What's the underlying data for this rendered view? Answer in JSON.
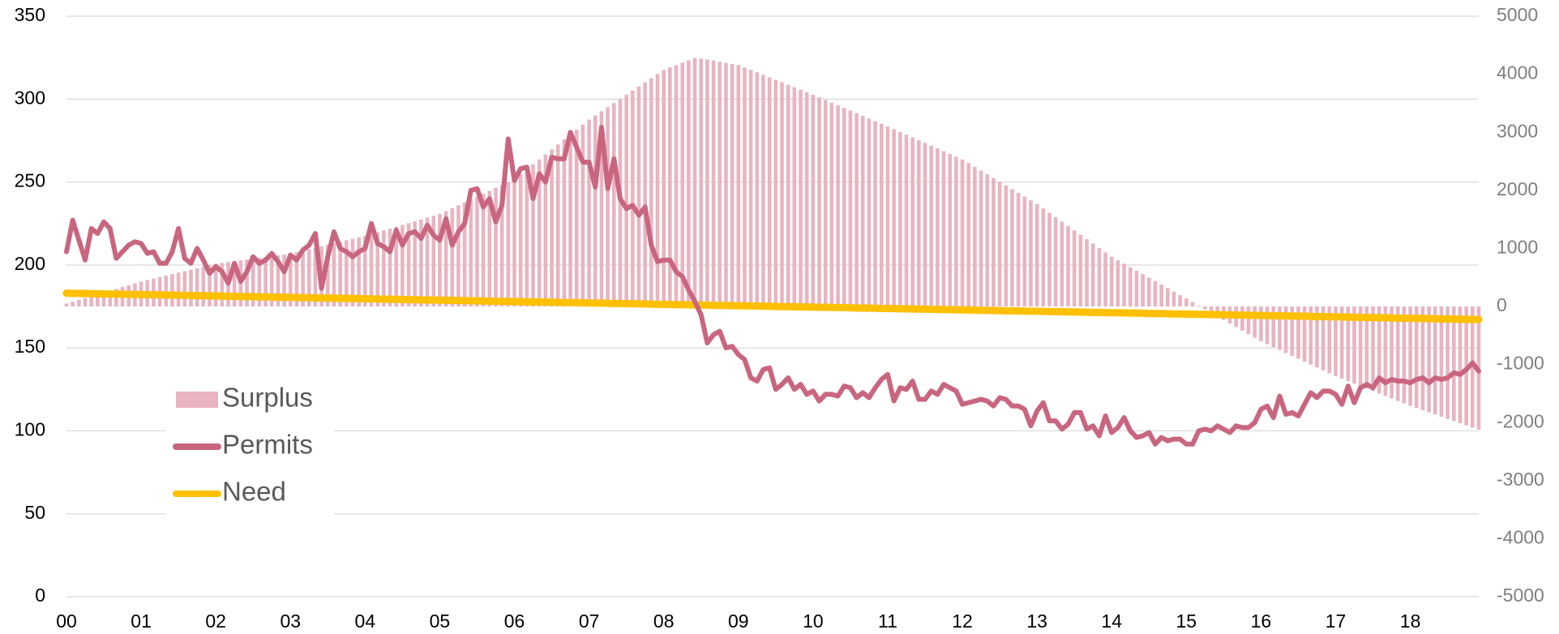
{
  "chart_data": {
    "type": "combo",
    "categories": [
      "00",
      null,
      null,
      null,
      null,
      null,
      null,
      null,
      null,
      null,
      null,
      null,
      "01",
      null,
      null,
      null,
      null,
      null,
      null,
      null,
      null,
      null,
      null,
      null,
      "02",
      null,
      null,
      null,
      null,
      null,
      null,
      null,
      null,
      null,
      null,
      null,
      "03",
      null,
      null,
      null,
      null,
      null,
      null,
      null,
      null,
      null,
      null,
      null,
      "04",
      null,
      null,
      null,
      null,
      null,
      null,
      null,
      null,
      null,
      null,
      null,
      "05",
      null,
      null,
      null,
      null,
      null,
      null,
      null,
      null,
      null,
      null,
      null,
      "06",
      null,
      null,
      null,
      null,
      null,
      null,
      null,
      null,
      null,
      null,
      null,
      "07",
      null,
      null,
      null,
      null,
      null,
      null,
      null,
      null,
      null,
      null,
      null,
      "08",
      null,
      null,
      null,
      null,
      null,
      null,
      null,
      null,
      null,
      null,
      null,
      "09",
      null,
      null,
      null,
      null,
      null,
      null,
      null,
      null,
      null,
      null,
      null,
      "10",
      null,
      null,
      null,
      null,
      null,
      null,
      null,
      null,
      null,
      null,
      null,
      "11",
      null,
      null,
      null,
      null,
      null,
      null,
      null,
      null,
      null,
      null,
      null,
      "12",
      null,
      null,
      null,
      null,
      null,
      null,
      null,
      null,
      null,
      null,
      null,
      "13",
      null,
      null,
      null,
      null,
      null,
      null,
      null,
      null,
      null,
      null,
      null,
      "14",
      null,
      null,
      null,
      null,
      null,
      null,
      null,
      null,
      null,
      null,
      null,
      "15",
      null,
      null,
      null,
      null,
      null,
      null,
      null,
      null,
      null,
      null,
      null,
      "16",
      null,
      null,
      null,
      null,
      null,
      null,
      null,
      null,
      null,
      null,
      null,
      "17",
      null,
      null,
      null,
      null,
      null,
      null,
      null,
      null,
      null,
      null,
      null,
      "18",
      null,
      null,
      null,
      null,
      null,
      null,
      null,
      null,
      null,
      null,
      null
    ],
    "ylim": [
      0,
      350
    ],
    "yticks": [
      0,
      50,
      100,
      150,
      200,
      250,
      300,
      350
    ],
    "y2lim": [
      -5000,
      5000
    ],
    "y2ticks": [
      -5000,
      -4000,
      -3000,
      -2000,
      -1000,
      0,
      1000,
      2000,
      3000,
      4000,
      5000
    ],
    "grid": true,
    "series": [
      {
        "name": "Surplus",
        "type": "bar",
        "axis": "y2",
        "color": "#e8b4c1",
        "values": [
          50,
          82,
          113,
          145,
          176,
          208,
          239,
          271,
          302,
          334,
          365,
          397,
          428,
          454,
          480,
          505,
          531,
          557,
          583,
          608,
          634,
          660,
          686,
          711,
          737,
          751,
          766,
          780,
          794,
          808,
          823,
          837,
          851,
          865,
          880,
          894,
          908,
          934,
          959,
          985,
          1011,
          1036,
          1062,
          1088,
          1113,
          1139,
          1165,
          1190,
          1216,
          1247,
          1279,
          1310,
          1342,
          1373,
          1405,
          1436,
          1467,
          1499,
          1530,
          1562,
          1593,
          1643,
          1693,
          1743,
          1793,
          1843,
          1893,
          1942,
          1992,
          2042,
          2092,
          2142,
          2192,
          2278,
          2363,
          2449,
          2534,
          2620,
          2706,
          2791,
          2877,
          2962,
          3048,
          3133,
          3219,
          3290,
          3362,
          3433,
          3504,
          3576,
          3647,
          3718,
          3790,
          3861,
          3932,
          4004,
          4075,
          4116,
          4157,
          4199,
          4240,
          4281,
          4270,
          4256,
          4236,
          4214,
          4195,
          4178,
          4161,
          4118,
          4075,
          4033,
          3990,
          3947,
          3904,
          3861,
          3818,
          3776,
          3733,
          3690,
          3647,
          3601,
          3556,
          3510,
          3465,
          3419,
          3374,
          3328,
          3282,
          3237,
          3191,
          3146,
          3100,
          3053,
          3006,
          2958,
          2911,
          2864,
          2817,
          2770,
          2723,
          2675,
          2628,
          2581,
          2534,
          2470,
          2406,
          2341,
          2277,
          2213,
          2149,
          2085,
          2021,
          1956,
          1892,
          1828,
          1764,
          1688,
          1613,
          1537,
          1461,
          1386,
          1310,
          1234,
          1159,
          1083,
          1007,
          932,
          856,
          796,
          736,
          676,
          616,
          557,
          497,
          437,
          377,
          317,
          257,
          197,
          137,
          76,
          14,
          -47,
          -109,
          -170,
          -232,
          -293,
          -354,
          -416,
          -477,
          -539,
          -600,
          -650,
          -700,
          -750,
          -800,
          -850,
          -900,
          -950,
          -1000,
          -1050,
          -1100,
          -1150,
          -1200,
          -1243,
          -1285,
          -1328,
          -1371,
          -1413,
          -1456,
          -1499,
          -1541,
          -1584,
          -1627,
          -1669,
          -1712,
          -1749,
          -1787,
          -1824,
          -1862,
          -1899,
          -1936,
          -1974,
          -2011,
          -2048,
          -2086,
          -2123
        ]
      },
      {
        "name": "Permits",
        "type": "line",
        "axis": "y",
        "color": "#c9667f",
        "values": [
          208,
          227,
          215,
          203,
          222,
          219,
          226,
          222,
          204,
          208,
          212,
          214,
          213,
          207,
          208,
          201,
          201,
          208,
          222,
          204,
          201,
          210,
          203,
          195,
          199,
          196,
          189,
          201,
          190,
          196,
          205,
          201,
          203,
          207,
          202,
          196,
          206,
          203,
          209,
          212,
          219,
          186,
          205,
          220,
          210,
          208,
          205,
          208,
          210,
          225,
          213,
          211,
          208,
          221,
          212,
          219,
          220,
          216,
          224,
          218,
          215,
          228,
          212,
          220,
          225,
          245,
          246,
          235,
          240,
          226,
          236,
          276,
          251,
          258,
          259,
          240,
          255,
          250,
          265,
          264,
          264,
          280,
          271,
          262,
          262,
          247,
          283,
          246,
          264,
          240,
          234,
          236,
          230,
          235,
          212,
          202,
          203,
          203,
          196,
          193,
          185,
          178,
          170,
          153,
          158,
          160,
          150,
          151,
          146,
          143,
          132,
          130,
          137,
          138,
          125,
          128,
          132,
          125,
          128,
          122,
          124,
          118,
          122,
          122,
          121,
          127,
          126,
          120,
          123,
          120,
          126,
          131,
          134,
          118,
          126,
          125,
          130,
          119,
          119,
          124,
          122,
          128,
          126,
          124,
          116,
          117,
          118,
          119,
          118,
          115,
          120,
          119,
          115,
          115,
          113,
          103,
          112,
          117,
          106,
          106,
          101,
          104,
          111,
          111,
          101,
          103,
          97,
          109,
          99,
          102,
          108,
          100,
          96,
          97,
          99,
          92,
          96,
          94,
          95,
          95,
          92,
          92,
          100,
          101,
          100,
          103,
          101,
          99,
          103,
          102,
          102,
          105,
          113,
          115,
          108,
          121,
          110,
          111,
          109,
          116,
          123,
          120,
          124,
          124,
          122,
          116,
          127,
          117,
          126,
          128,
          126,
          132,
          129,
          131,
          130,
          130,
          129,
          131,
          132,
          129,
          132,
          131,
          132,
          135,
          134,
          137,
          141,
          136
        ]
      },
      {
        "name": "Need",
        "type": "line",
        "axis": "y",
        "color": "#ffc000",
        "values": [
          183.0,
          182.9,
          182.9,
          182.8,
          182.7,
          182.7,
          182.6,
          182.5,
          182.4,
          182.4,
          182.3,
          182.2,
          182.2,
          182.1,
          182.0,
          182.0,
          181.9,
          181.8,
          181.8,
          181.7,
          181.6,
          181.5,
          181.5,
          181.4,
          181.3,
          181.3,
          181.2,
          181.1,
          181.0,
          181.0,
          180.9,
          180.8,
          180.8,
          180.7,
          180.6,
          180.5,
          180.5,
          180.4,
          180.3,
          180.3,
          180.2,
          180.1,
          180.1,
          180.0,
          179.9,
          179.8,
          179.8,
          179.7,
          179.6,
          179.6,
          179.5,
          179.4,
          179.4,
          179.3,
          179.2,
          179.1,
          179.1,
          179.0,
          178.9,
          178.9,
          178.8,
          178.7,
          178.7,
          178.6,
          178.5,
          178.5,
          178.4,
          178.3,
          178.2,
          178.2,
          178.1,
          178.0,
          178.0,
          177.9,
          177.8,
          177.8,
          177.7,
          177.6,
          177.6,
          177.5,
          177.4,
          177.3,
          177.3,
          177.2,
          177.1,
          177.1,
          177.0,
          176.9,
          176.8,
          176.8,
          176.7,
          176.6,
          176.6,
          176.5,
          176.4,
          176.3,
          176.3,
          176.2,
          176.1,
          176.1,
          176.0,
          175.9,
          175.9,
          175.8,
          175.7,
          175.6,
          175.6,
          175.5,
          175.4,
          175.4,
          175.3,
          175.2,
          175.2,
          175.1,
          175.0,
          174.9,
          174.9,
          174.8,
          174.7,
          174.7,
          174.6,
          174.5,
          174.5,
          174.4,
          174.3,
          174.3,
          174.2,
          174.1,
          174.0,
          174.0,
          173.9,
          173.8,
          173.8,
          173.7,
          173.6,
          173.6,
          173.5,
          173.4,
          173.4,
          173.3,
          173.2,
          173.1,
          173.1,
          173.0,
          172.9,
          172.9,
          172.8,
          172.7,
          172.6,
          172.6,
          172.5,
          172.4,
          172.4,
          172.3,
          172.2,
          172.1,
          172.1,
          172.0,
          171.9,
          171.9,
          171.8,
          171.7,
          171.7,
          171.6,
          171.5,
          171.4,
          171.4,
          171.3,
          171.2,
          171.2,
          171.1,
          171.0,
          171.0,
          170.9,
          170.8,
          170.7,
          170.7,
          170.6,
          170.5,
          170.5,
          170.4,
          170.3,
          170.3,
          170.2,
          170.1,
          170.1,
          170.0,
          169.9,
          169.8,
          169.8,
          169.7,
          169.6,
          169.6,
          169.5,
          169.4,
          169.4,
          169.3,
          169.2,
          169.2,
          169.1,
          169.0,
          168.9,
          168.9,
          168.8,
          168.7,
          168.7,
          168.6,
          168.5,
          168.4,
          168.4,
          168.3,
          168.2,
          168.2,
          168.1,
          168.0,
          167.9,
          167.9,
          167.8,
          167.7,
          167.7,
          167.6,
          167.5,
          167.5,
          167.4,
          167.3,
          167.2,
          167.2,
          167.1
        ]
      }
    ]
  }
}
